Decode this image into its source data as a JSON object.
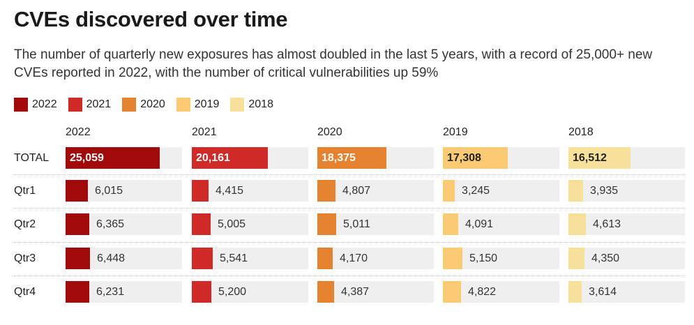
{
  "title": "CVEs discovered over time",
  "subtitle": "The number of quarterly new exposures has almost doubled in the last 5 years, with a record of 25,000+ new CVEs reported in 2022, with the number of critical vulnerabilities up 59%",
  "colors": {
    "2022": "#a10a0a",
    "2021": "#cf2a27",
    "2020": "#e6812f",
    "2019": "#fdca74",
    "2018": "#f7e19a"
  },
  "chart_data": {
    "type": "bar",
    "legend_placement": "top-left",
    "legend": [
      "2022",
      "2021",
      "2020",
      "2019",
      "2018"
    ],
    "columns": [
      "2022",
      "2021",
      "2020",
      "2019",
      "2018"
    ],
    "rows": [
      "TOTAL",
      "Qtr1",
      "Qtr2",
      "Qtr3",
      "Qtr4"
    ],
    "series": [
      {
        "name": "2022",
        "values": [
          25059,
          6015,
          6365,
          6448,
          6231
        ],
        "labels": [
          "25,059",
          "6,015",
          "6,365",
          "6,448",
          "6,231"
        ]
      },
      {
        "name": "2021",
        "values": [
          20161,
          4415,
          5005,
          5541,
          5200
        ],
        "labels": [
          "20,161",
          "4,415",
          "5,005",
          "5,541",
          "5,200"
        ]
      },
      {
        "name": "2020",
        "values": [
          18375,
          4807,
          5011,
          4170,
          4387
        ],
        "labels": [
          "18,375",
          "4,807",
          "5,011",
          "4,170",
          "4,387"
        ]
      },
      {
        "name": "2019",
        "values": [
          17308,
          3245,
          4091,
          5150,
          4822
        ],
        "labels": [
          "17,308",
          "3,245",
          "4,091",
          "5,150",
          "4,822"
        ]
      },
      {
        "name": "2018",
        "values": [
          16512,
          3935,
          4613,
          4350,
          3614
        ],
        "labels": [
          "16,512",
          "3,935",
          "4,613",
          "4,350",
          "3,614"
        ]
      }
    ],
    "max": 31000
  }
}
